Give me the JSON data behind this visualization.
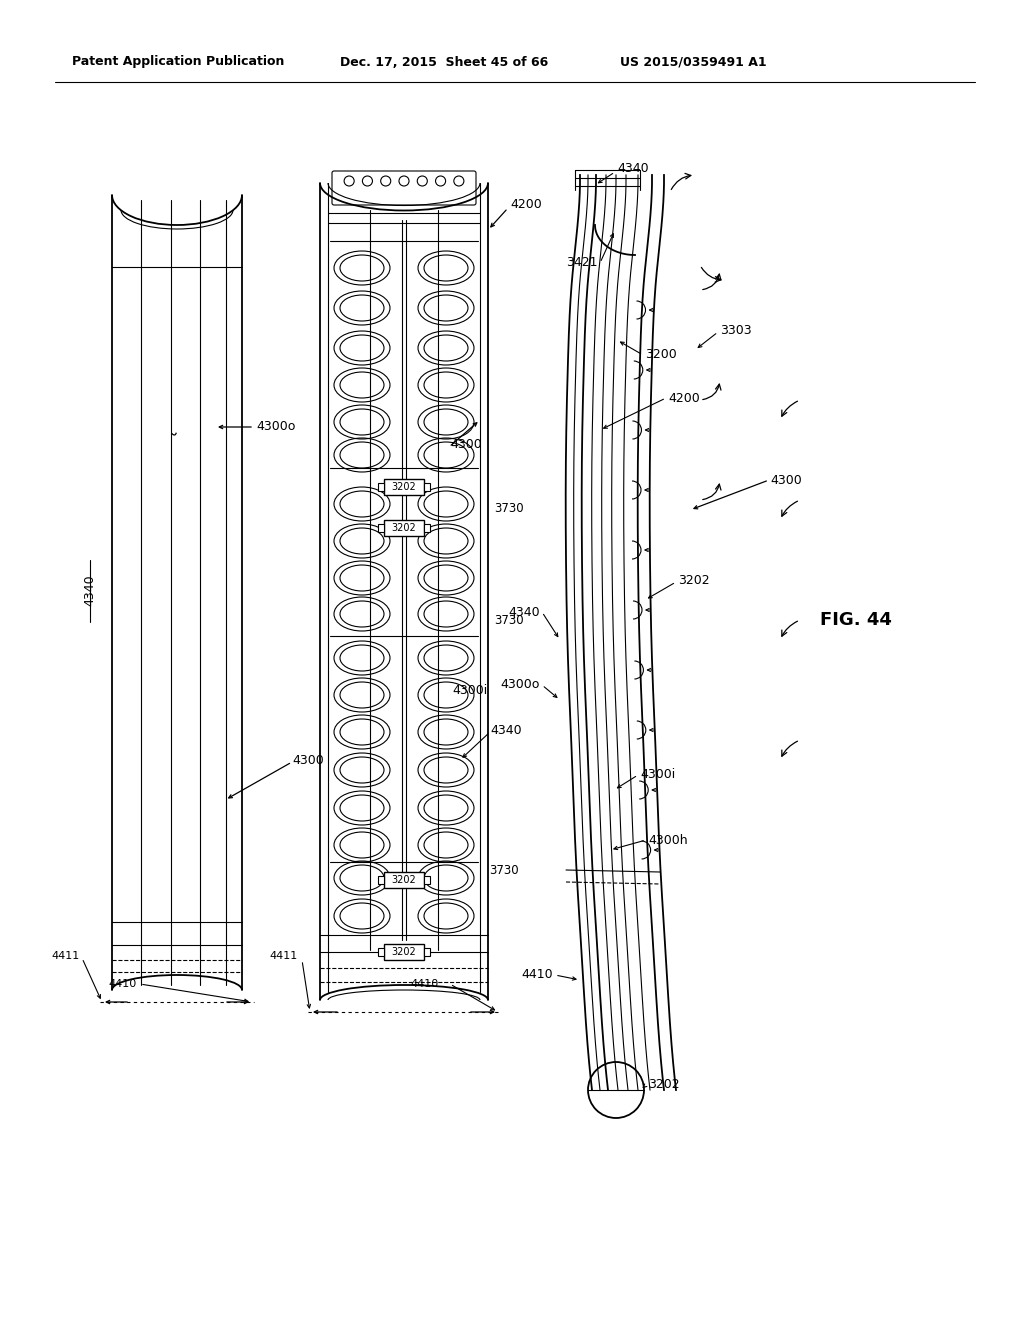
{
  "header_left": "Patent Application Publication",
  "header_mid": "Dec. 17, 2015  Sheet 45 of 66",
  "header_right": "US 2015/0359491 A1",
  "fig_label": "FIG. 44",
  "bg_color": "#ffffff"
}
